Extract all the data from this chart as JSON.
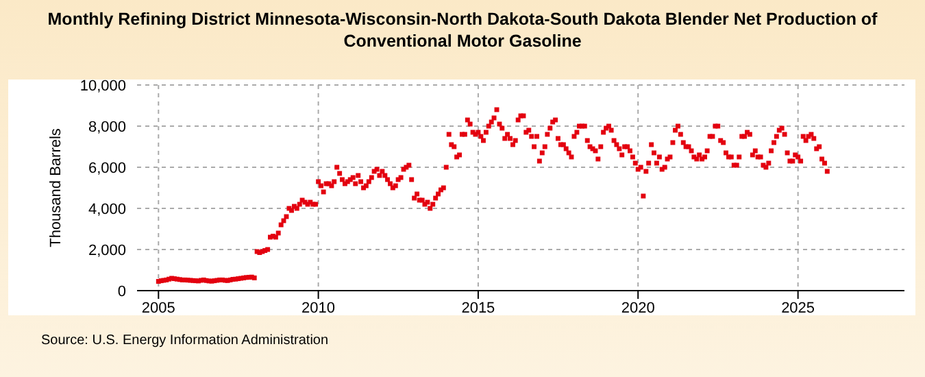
{
  "chart_data": {
    "type": "scatter",
    "title": "Monthly Refining District Minnesota-Wisconsin-North Dakota-South Dakota Blender Net Production of Conventional Motor Gasoline",
    "ylabel": "Thousand Barrels",
    "annotations": [
      "Source: U.S. Energy Information Administration"
    ],
    "marker": "square",
    "grid": true,
    "xlim": [
      "2004-05",
      "2028-05"
    ],
    "xticks": [
      "2005",
      "2010",
      "2015",
      "2020",
      "2025"
    ],
    "ylim": [
      0,
      10000
    ],
    "yticks": [
      {
        "value": 0,
        "label": "0"
      },
      {
        "value": 2000,
        "label": "2,000"
      },
      {
        "value": 4000,
        "label": "4,000"
      },
      {
        "value": 6000,
        "label": "6,000"
      },
      {
        "value": 8000,
        "label": "8,000"
      },
      {
        "value": 10000,
        "label": "10,000"
      }
    ],
    "series": [
      {
        "color": "#e3000f",
        "x": [
          "2005-01",
          "2005-02",
          "2005-03",
          "2005-04",
          "2005-05",
          "2005-06",
          "2005-07",
          "2005-08",
          "2005-09",
          "2005-10",
          "2005-11",
          "2005-12",
          "2006-01",
          "2006-02",
          "2006-03",
          "2006-04",
          "2006-05",
          "2006-06",
          "2006-07",
          "2006-08",
          "2006-09",
          "2006-10",
          "2006-11",
          "2006-12",
          "2007-01",
          "2007-02",
          "2007-03",
          "2007-04",
          "2007-05",
          "2007-06",
          "2007-07",
          "2007-08",
          "2007-09",
          "2007-10",
          "2007-11",
          "2007-12",
          "2008-01",
          "2008-02",
          "2008-03",
          "2008-04",
          "2008-05",
          "2008-06",
          "2008-07",
          "2008-08",
          "2008-09",
          "2008-10",
          "2008-11",
          "2008-12",
          "2009-01",
          "2009-02",
          "2009-03",
          "2009-04",
          "2009-05",
          "2009-06",
          "2009-07",
          "2009-08",
          "2009-09",
          "2009-10",
          "2009-11",
          "2009-12",
          "2010-01",
          "2010-02",
          "2010-03",
          "2010-04",
          "2010-05",
          "2010-06",
          "2010-07",
          "2010-08",
          "2010-09",
          "2010-10",
          "2010-11",
          "2010-12",
          "2011-01",
          "2011-02",
          "2011-03",
          "2011-04",
          "2011-05",
          "2011-06",
          "2011-07",
          "2011-08",
          "2011-09",
          "2011-10",
          "2011-11",
          "2011-12",
          "2012-01",
          "2012-02",
          "2012-03",
          "2012-04",
          "2012-05",
          "2012-06",
          "2012-07",
          "2012-08",
          "2012-09",
          "2012-10",
          "2012-11",
          "2012-12",
          "2013-01",
          "2013-02",
          "2013-03",
          "2013-04",
          "2013-05",
          "2013-06",
          "2013-07",
          "2013-08",
          "2013-09",
          "2013-10",
          "2013-11",
          "2013-12",
          "2014-01",
          "2014-02",
          "2014-03",
          "2014-04",
          "2014-05",
          "2014-06",
          "2014-07",
          "2014-08",
          "2014-09",
          "2014-10",
          "2014-11",
          "2014-12",
          "2015-01",
          "2015-02",
          "2015-03",
          "2015-04",
          "2015-05",
          "2015-06",
          "2015-07",
          "2015-08",
          "2015-09",
          "2015-10",
          "2015-11",
          "2015-12",
          "2016-01",
          "2016-02",
          "2016-03",
          "2016-04",
          "2016-05",
          "2016-06",
          "2016-07",
          "2016-08",
          "2016-09",
          "2016-10",
          "2016-11",
          "2016-12",
          "2017-01",
          "2017-02",
          "2017-03",
          "2017-04",
          "2017-05",
          "2017-06",
          "2017-07",
          "2017-08",
          "2017-09",
          "2017-10",
          "2017-11",
          "2017-12",
          "2018-01",
          "2018-02",
          "2018-03",
          "2018-04",
          "2018-05",
          "2018-06",
          "2018-07",
          "2018-08",
          "2018-09",
          "2018-10",
          "2018-11",
          "2018-12",
          "2019-01",
          "2019-02",
          "2019-03",
          "2019-04",
          "2019-05",
          "2019-06",
          "2019-07",
          "2019-08",
          "2019-09",
          "2019-10",
          "2019-11",
          "2019-12",
          "2020-01",
          "2020-02",
          "2020-03",
          "2020-04",
          "2020-05",
          "2020-06",
          "2020-07",
          "2020-08",
          "2020-09",
          "2020-10",
          "2020-11",
          "2020-12",
          "2021-01",
          "2021-02",
          "2021-03",
          "2021-04",
          "2021-05",
          "2021-06",
          "2021-07",
          "2021-08",
          "2021-09",
          "2021-10",
          "2021-11",
          "2021-12",
          "2022-01",
          "2022-02",
          "2022-03",
          "2022-04",
          "2022-05",
          "2022-06",
          "2022-07",
          "2022-08",
          "2022-09",
          "2022-10",
          "2022-11",
          "2022-12",
          "2023-01",
          "2023-02",
          "2023-03",
          "2023-04",
          "2023-05",
          "2023-06",
          "2023-07",
          "2023-08",
          "2023-09",
          "2023-10",
          "2023-11",
          "2023-12",
          "2024-01",
          "2024-02",
          "2024-03",
          "2024-04",
          "2024-05",
          "2024-06",
          "2024-07",
          "2024-08",
          "2024-09",
          "2024-10",
          "2024-11",
          "2024-12",
          "2025-01",
          "2025-02",
          "2025-03",
          "2025-04",
          "2025-05",
          "2025-06",
          "2025-07",
          "2025-08",
          "2025-09",
          "2025-10",
          "2025-11",
          "2025-12"
        ],
        "values": [
          450,
          480,
          500,
          520,
          560,
          600,
          580,
          560,
          540,
          520,
          520,
          510,
          500,
          490,
          480,
          470,
          500,
          520,
          490,
          470,
          460,
          480,
          500,
          520,
          520,
          500,
          490,
          520,
          550,
          560,
          580,
          600,
          620,
          640,
          650,
          660,
          620,
          1900,
          1850,
          1900,
          1950,
          2000,
          2600,
          2650,
          2600,
          2800,
          3200,
          3400,
          3600,
          4000,
          3900,
          4100,
          4000,
          4200,
          4400,
          4300,
          4200,
          4300,
          4200,
          4200,
          5300,
          5100,
          4800,
          5200,
          5200,
          5100,
          5300,
          6000,
          5700,
          5400,
          5200,
          5300,
          5400,
          5500,
          5200,
          5600,
          5300,
          5000,
          5100,
          5300,
          5500,
          5800,
          5900,
          5600,
          5800,
          5600,
          5400,
          5200,
          5000,
          5100,
          5400,
          5500,
          5900,
          6000,
          6100,
          5400,
          4500,
          4700,
          4400,
          4400,
          4200,
          4300,
          4000,
          4200,
          4500,
          4700,
          4900,
          5000,
          6000,
          7600,
          7100,
          7000,
          6500,
          6600,
          7600,
          7600,
          8300,
          8100,
          7700,
          7600,
          7700,
          7500,
          7300,
          7700,
          8000,
          8200,
          8400,
          8800,
          8100,
          7900,
          7400,
          7600,
          7400,
          7100,
          7300,
          8300,
          8500,
          8500,
          7700,
          7800,
          7500,
          7000,
          7500,
          6300,
          6700,
          7000,
          7600,
          7900,
          8200,
          8300,
          7400,
          7100,
          7100,
          6900,
          6700,
          6500,
          7500,
          7700,
          8000,
          8000,
          8000,
          7300,
          7000,
          6900,
          6800,
          6400,
          7000,
          7700,
          7900,
          8000,
          7800,
          7300,
          7100,
          6900,
          6600,
          7000,
          7000,
          6800,
          6500,
          6200,
          5900,
          6000,
          4600,
          5800,
          6200,
          7100,
          6700,
          6200,
          6500,
          5900,
          6000,
          6400,
          6500,
          7200,
          7800,
          8000,
          7600,
          7200,
          7000,
          7000,
          6800,
          6500,
          6400,
          6600,
          6400,
          6500,
          6800,
          7500,
          7500,
          8000,
          8000,
          7300,
          7200,
          6700,
          6500,
          6500,
          6100,
          6100,
          6500,
          7500,
          7500,
          7700,
          7600,
          6600,
          6800,
          6500,
          6500,
          6100,
          6000,
          6200,
          6800,
          7200,
          7500,
          7800,
          7900,
          7600,
          6700,
          6300,
          6300,
          6600,
          6500,
          6300,
          7500,
          7300,
          7500,
          7600,
          7400,
          6900,
          7000,
          6400,
          6200,
          5800
        ]
      }
    ]
  }
}
